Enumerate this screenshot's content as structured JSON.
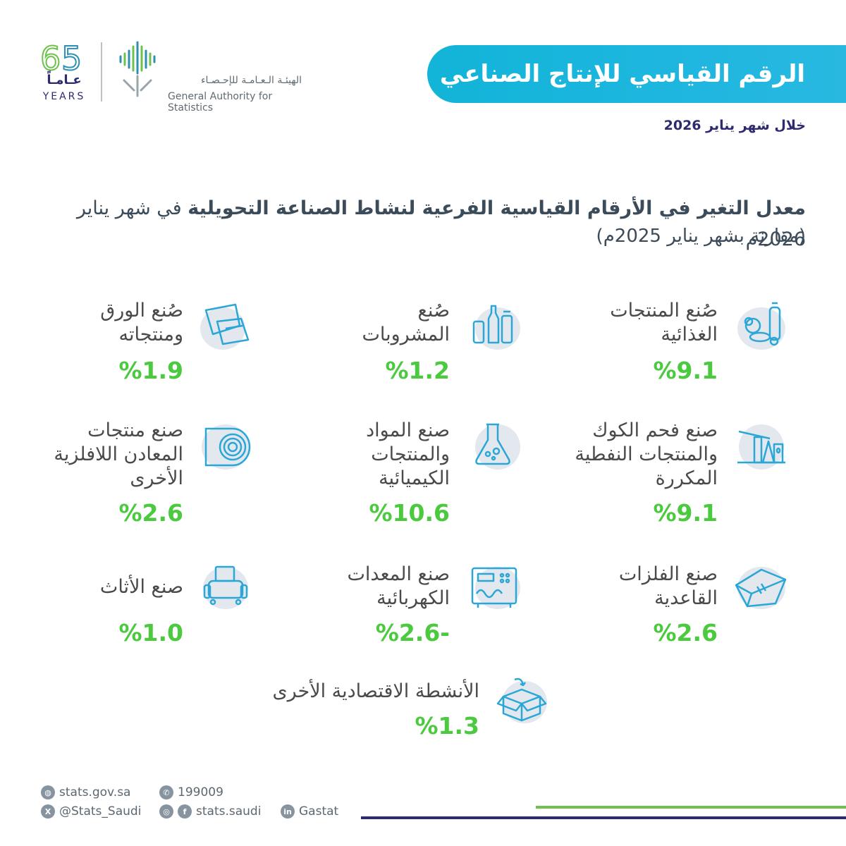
{
  "header": {
    "title": "الرقم القياسي للإنتاج الصناعي",
    "period": "خلال شهر يناير 2026"
  },
  "logo": {
    "anniversary_number": "65",
    "anniversary_ar": "عـامـاً",
    "anniversary_en": "YEARS",
    "org_ar": "الهيئـة الـعـامـة للإحـصـاء",
    "org_en": "General Authority for Statistics"
  },
  "headline": {
    "prefix": "معدل التغير في الأرقام القياسية الفرعية لنشاط الصناعة التحويلية",
    "suffix": " في شهر يناير 2026م",
    "subline": "(مقارنة بشهر يناير 2025م)"
  },
  "indicators": [
    {
      "label": "صُنع المنتجات\nالغذائية",
      "value": "%9.1",
      "icon": "food-icon"
    },
    {
      "label": "صُنع\nالمشروبات",
      "value": "%1.2",
      "icon": "beverages-icon"
    },
    {
      "label": "صُنع الورق\nومنتجاته",
      "value": "%1.9",
      "icon": "paper-icon"
    },
    {
      "label": "صنع فحم الكوك\nوالمنتجات النفطية\nالمكررة",
      "value": "%9.1",
      "icon": "oil-pump-icon"
    },
    {
      "label": "صنع المواد\nوالمنتجات\nالكيميائية",
      "value": "%10.6",
      "icon": "flask-icon"
    },
    {
      "label": "صنع منتجات\nالمعادن اللافلزية\nالأخرى",
      "value": "%2.6",
      "icon": "mineral-roll-icon"
    },
    {
      "label": "صنع الفلزات\nالقاعدية",
      "value": "%2.6",
      "icon": "metal-ingot-icon"
    },
    {
      "label": "صنع المعدات\nالكهربائية",
      "value": "%2.6-",
      "icon": "electrical-equipment-icon"
    },
    {
      "label": "صنع الأثاث",
      "value": "%1.0",
      "icon": "furniture-icon"
    },
    {
      "label": "الأنشطة الاقتصادية الأخرى",
      "value": "%1.3",
      "icon": "box-icon"
    }
  ],
  "footer": {
    "website": "stats.gov.sa",
    "phone": "199009",
    "twitter": "@Stats_Saudi",
    "instagram_facebook": "stats.saudi",
    "linkedin": "Gastat"
  },
  "colors": {
    "banner": "#1fb6df",
    "value_green": "#4bc93f",
    "navy": "#2d2a6e",
    "icon_stroke": "#2aa7d6",
    "icon_blob": "#e3e8ee"
  }
}
